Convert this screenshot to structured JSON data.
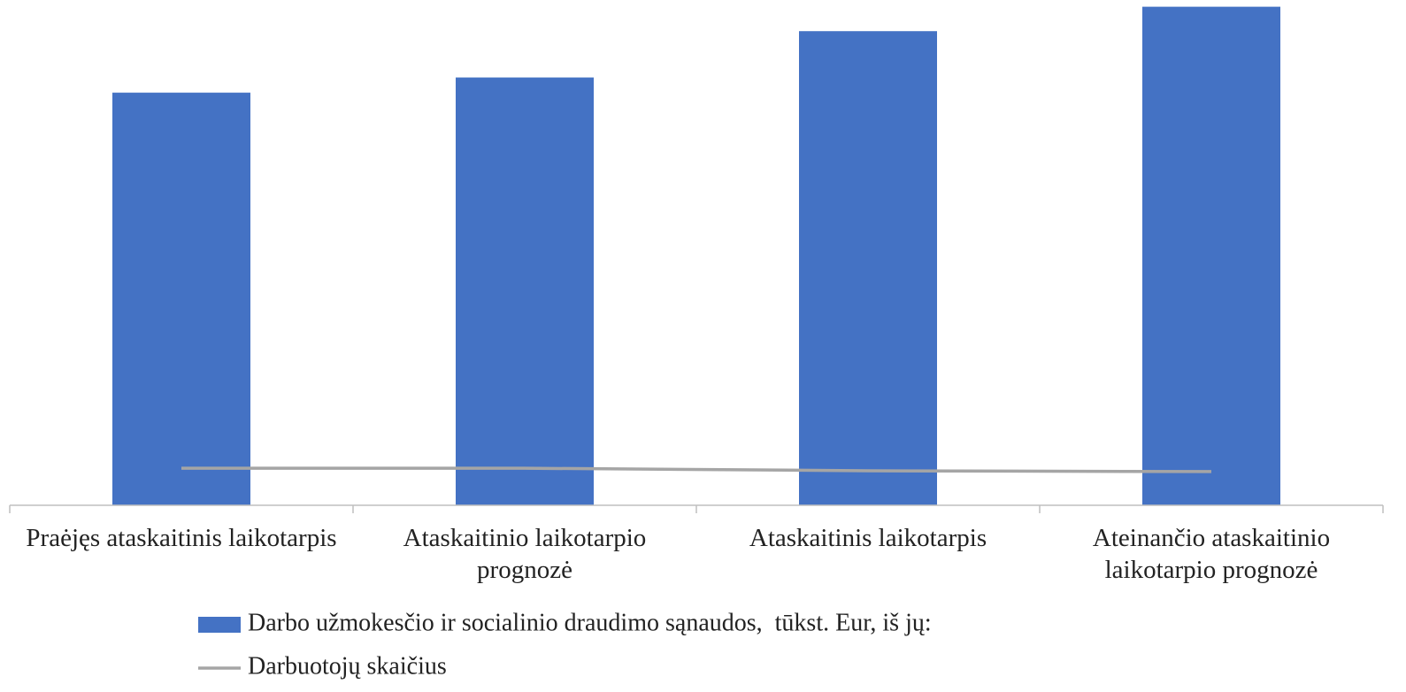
{
  "chart_data": {
    "type": "bar",
    "categories": [
      "Praėjęs ataskaitinis laikotarpis",
      "Ataskaitinio laikotarpio prognozė",
      "Ataskaitinis laikotarpis",
      "Ateinančio ataskaitinio laikotarpio prognozė"
    ],
    "series": [
      {
        "name": "Darbo užmokesčio ir socialinio draudimo sąnaudos,  tūkst. Eur, iš jų:",
        "type": "bar",
        "color": "#4472c4",
        "values": [
          490,
          508,
          563,
          592
        ]
      },
      {
        "name": "Darbuotojų skaičius",
        "type": "line",
        "color": "#a5a5a5",
        "values": [
          44,
          44,
          41,
          40
        ]
      }
    ],
    "ylim": [
      0,
      600
    ],
    "legend": "bottom"
  }
}
